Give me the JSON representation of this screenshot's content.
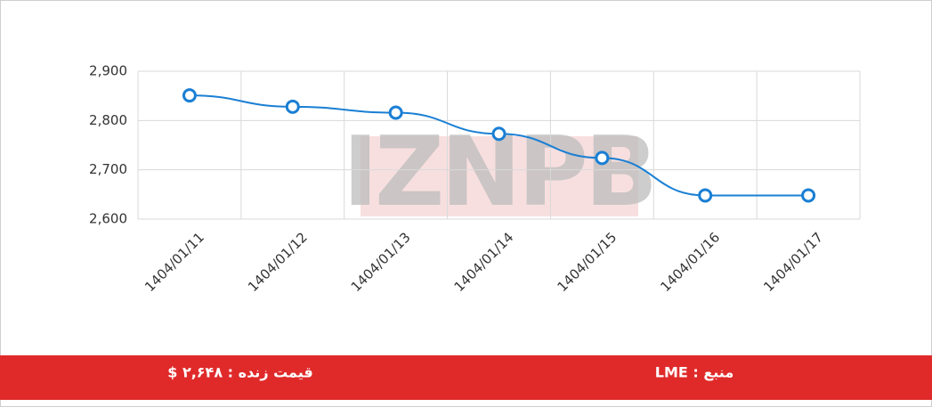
{
  "chart_data": {
    "type": "line",
    "categories": [
      "1404/01/11",
      "1404/01/12",
      "1404/01/13",
      "1404/01/14",
      "1404/01/15",
      "1404/01/16",
      "1404/01/17"
    ],
    "series": [
      {
        "color": "#1a7fd4",
        "values": [
          2851,
          2828,
          2816,
          2773,
          2724,
          2648,
          2648
        ]
      }
    ],
    "ylim": [
      2600,
      2900
    ],
    "yticks": [
      {
        "value": 2600,
        "label": "2,600"
      },
      {
        "value": 2700,
        "label": "2,700"
      },
      {
        "value": 2800,
        "label": "2,800"
      },
      {
        "value": 2900,
        "label": "2,900"
      }
    ],
    "grid": true,
    "watermark": "IZNPB"
  },
  "footer": {
    "price": "قیمت زنده : ۲,۶۴۸ $",
    "source": "منبع : LME"
  }
}
